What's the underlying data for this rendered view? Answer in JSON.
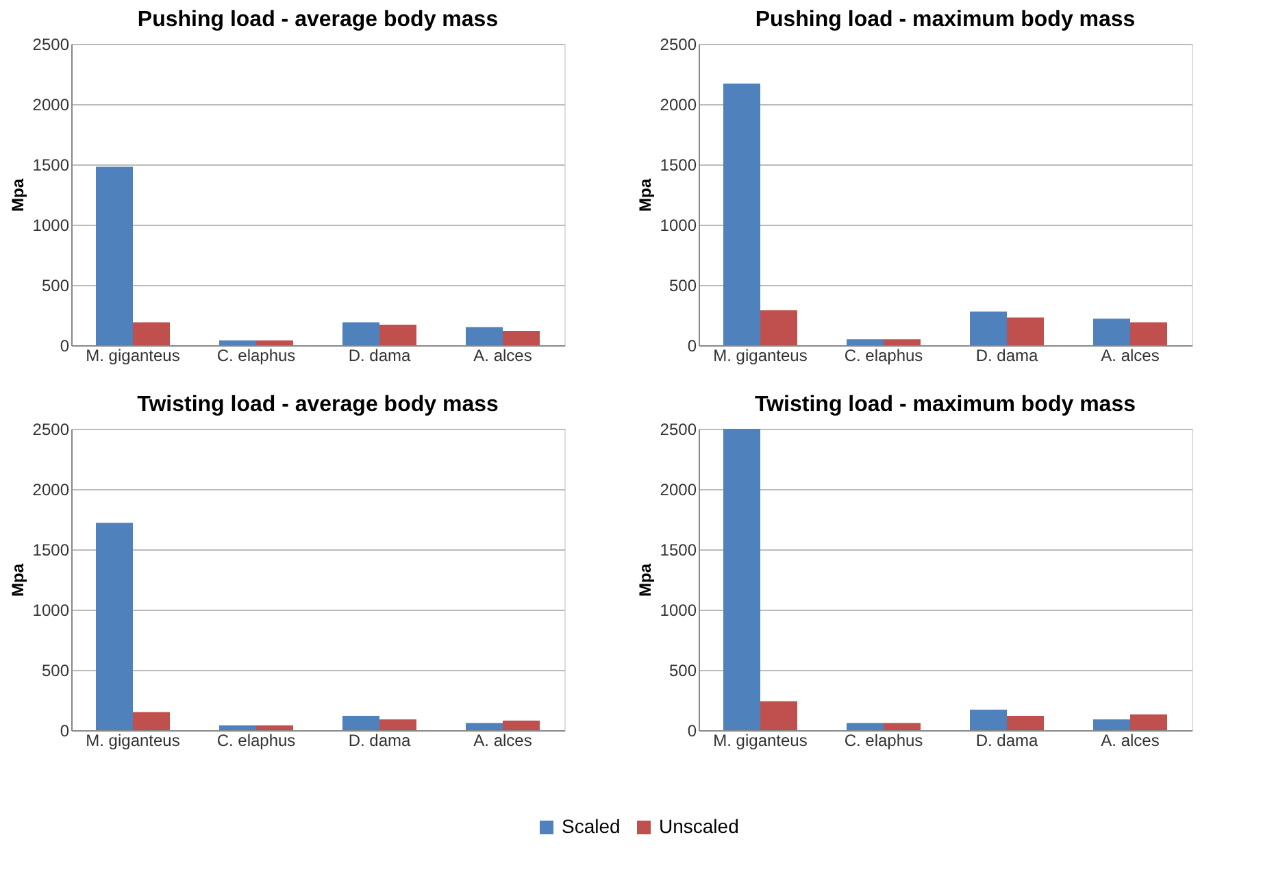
{
  "chart_data": [
    {
      "type": "bar",
      "title": "Pushing load - average body mass",
      "ylabel": "Mpa",
      "categories": [
        "M. giganteus",
        "C. elaphus",
        "D. dama",
        "A. alces"
      ],
      "series": [
        {
          "name": "Scaled",
          "color": "#4f81bd",
          "values": [
            1480,
            40,
            190,
            150
          ]
        },
        {
          "name": "Unscaled",
          "color": "#c0504d",
          "values": [
            190,
            40,
            170,
            120
          ]
        }
      ],
      "ylim": [
        0,
        2500
      ],
      "yticks": [
        0,
        500,
        1000,
        1500,
        2000,
        2500
      ],
      "grid": "y",
      "legend": "bottom"
    },
    {
      "type": "bar",
      "title": "Pushing load - maximum body mass",
      "ylabel": "Mpa",
      "categories": [
        "M. giganteus",
        "C. elaphus",
        "D. dama",
        "A. alces"
      ],
      "series": [
        {
          "name": "Scaled",
          "color": "#4f81bd",
          "values": [
            2170,
            50,
            280,
            220
          ]
        },
        {
          "name": "Unscaled",
          "color": "#c0504d",
          "values": [
            290,
            50,
            230,
            190
          ]
        }
      ],
      "ylim": [
        0,
        2500
      ],
      "yticks": [
        0,
        500,
        1000,
        1500,
        2000,
        2500
      ],
      "grid": "y",
      "legend": "bottom"
    },
    {
      "type": "bar",
      "title": "Twisting load - average body mass",
      "ylabel": "Mpa",
      "categories": [
        "M. giganteus",
        "C. elaphus",
        "D. dama",
        "A. alces"
      ],
      "series": [
        {
          "name": "Scaled",
          "color": "#4f81bd",
          "values": [
            1720,
            40,
            120,
            60
          ]
        },
        {
          "name": "Unscaled",
          "color": "#c0504d",
          "values": [
            150,
            40,
            90,
            80
          ]
        }
      ],
      "ylim": [
        0,
        2500
      ],
      "yticks": [
        0,
        500,
        1000,
        1500,
        2000,
        2500
      ],
      "grid": "y",
      "legend": "bottom"
    },
    {
      "type": "bar",
      "title": "Twisting load - maximum body mass",
      "ylabel": "Mpa",
      "categories": [
        "M. giganteus",
        "C. elaphus",
        "D. dama",
        "A. alces"
      ],
      "series": [
        {
          "name": "Scaled",
          "color": "#4f81bd",
          "values": [
            2500,
            60,
            170,
            90
          ]
        },
        {
          "name": "Unscaled",
          "color": "#c0504d",
          "values": [
            240,
            60,
            120,
            130
          ]
        }
      ],
      "ylim": [
        0,
        2500
      ],
      "yticks": [
        0,
        500,
        1000,
        1500,
        2000,
        2500
      ],
      "grid": "y",
      "legend": "bottom"
    }
  ]
}
